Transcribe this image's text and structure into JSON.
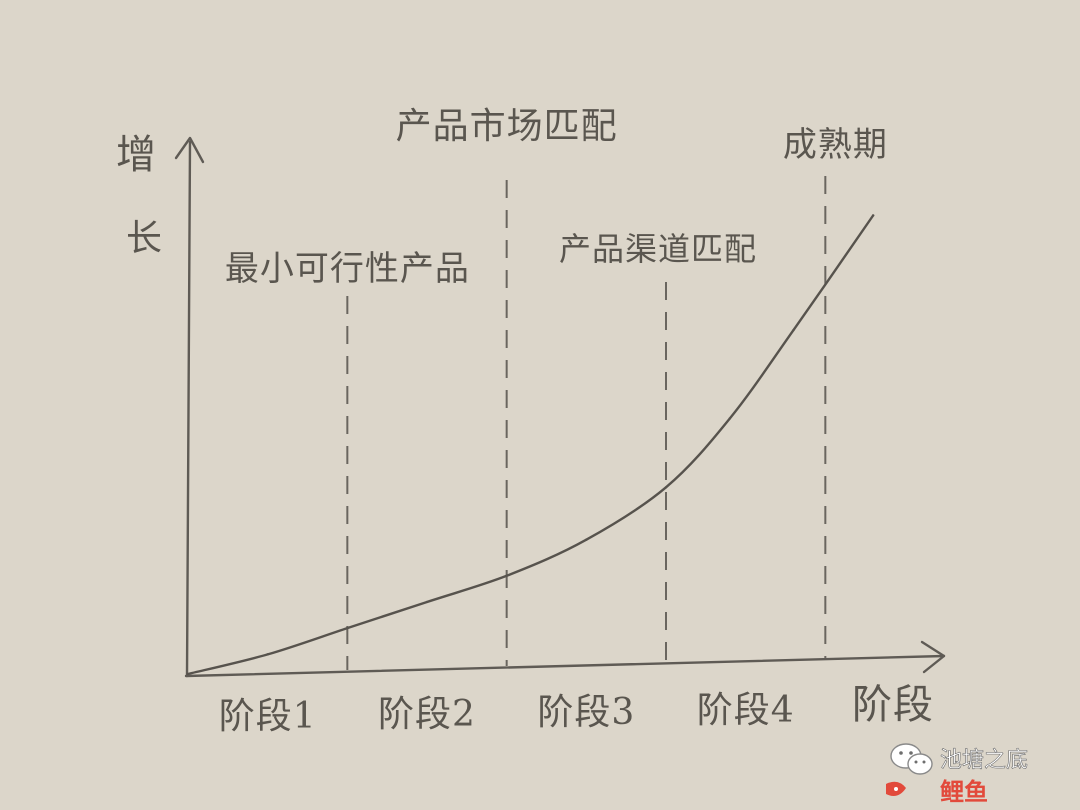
{
  "chart_data": {
    "type": "line",
    "xlabel": "阶段",
    "ylabel": "增长",
    "categories": [
      "阶段1",
      "阶段2",
      "阶段3",
      "阶段4"
    ],
    "annotations": [
      {
        "text": "最小可行性产品",
        "after": "阶段1"
      },
      {
        "text": "产品市场匹配",
        "after": "阶段2"
      },
      {
        "text": "产品渠道匹配",
        "after": "阶段3"
      },
      {
        "text": "成熟期",
        "after": "阶段4"
      }
    ],
    "series": [
      {
        "x": [
          0,
          0.5,
          1,
          1.5,
          2,
          2.5,
          3,
          3.4,
          3.8,
          4.3
        ],
        "values": [
          0,
          0.06,
          0.14,
          0.22,
          0.3,
          0.41,
          0.57,
          0.78,
          1.05,
          1.4
        ]
      }
    ],
    "xlim": [
      0,
      4.5
    ],
    "ylim": [
      0,
      1.6
    ],
    "grid": false,
    "legend": "none"
  },
  "watermark": {
    "name": "池塘之底",
    "logo_text": "鲤鱼"
  },
  "colors": {
    "paper": "#dcd6ca",
    "pencil": "#5a564f",
    "logo_red": "#e24a3b",
    "logo_green": "#3aa845"
  }
}
